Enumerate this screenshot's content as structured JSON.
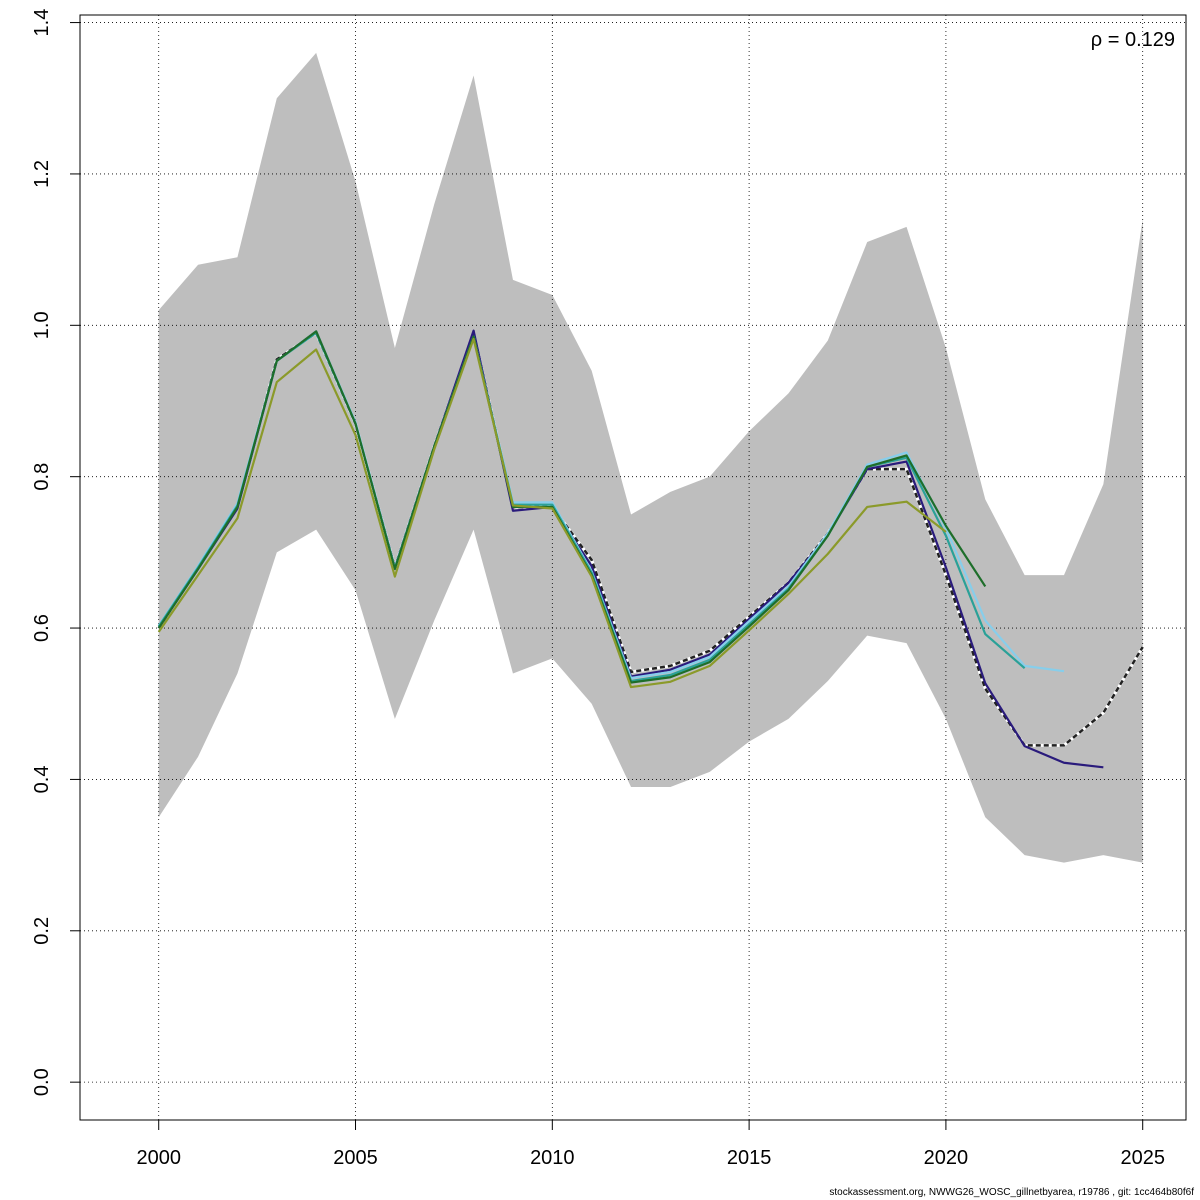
{
  "footer_text": "stockassessment.org, NWWG26_WOSC_gillnetbyarea, r19786 , git: 1cc464b80f6f",
  "annotation": {
    "symbol": "ρ",
    "text": " = 0.129"
  },
  "colors": {
    "band": "#bebebe",
    "grid": "#000000",
    "axis": "#000000"
  },
  "chart_data": {
    "type": "line",
    "xlabel": "",
    "ylabel": "",
    "xlim": [
      1998,
      2026.1
    ],
    "ylim": [
      -0.05,
      1.41
    ],
    "x_ticks": [
      2000,
      2005,
      2010,
      2015,
      2020,
      2025
    ],
    "y_ticks": [
      0.0,
      0.2,
      0.4,
      0.6,
      0.8,
      1.0,
      1.2,
      1.4
    ],
    "x_tick_labels": [
      "2000",
      "2005",
      "2010",
      "2015",
      "2020",
      "2025"
    ],
    "y_tick_labels": [
      "0.0",
      "0.2",
      "0.4",
      "0.6",
      "0.8",
      "1.0",
      "1.2",
      "1.4"
    ],
    "grid": true,
    "confidence_band": {
      "x": [
        2000,
        2001,
        2002,
        2003,
        2004,
        2005,
        2006,
        2007,
        2008,
        2009,
        2010,
        2011,
        2012,
        2013,
        2014,
        2015,
        2016,
        2017,
        2018,
        2019,
        2020,
        2021,
        2022,
        2023,
        2024,
        2025
      ],
      "upper": [
        1.02,
        1.08,
        1.09,
        1.3,
        1.36,
        1.19,
        0.97,
        1.16,
        1.33,
        1.06,
        1.04,
        0.94,
        0.75,
        0.78,
        0.8,
        0.86,
        0.91,
        0.98,
        1.11,
        1.13,
        0.97,
        0.77,
        0.67,
        0.67,
        0.79,
        1.14
      ],
      "lower": [
        0.35,
        0.43,
        0.54,
        0.7,
        0.73,
        0.65,
        0.48,
        0.61,
        0.73,
        0.54,
        0.56,
        0.5,
        0.39,
        0.39,
        0.41,
        0.45,
        0.48,
        0.53,
        0.59,
        0.58,
        0.48,
        0.35,
        0.3,
        0.29,
        0.3,
        0.29
      ]
    },
    "series": [
      {
        "color": "#222222",
        "dashed": true,
        "width": 2.5,
        "x": [
          2000,
          2001,
          2002,
          2003,
          2004,
          2005,
          2006,
          2007,
          2008,
          2009,
          2010,
          2011,
          2012,
          2013,
          2014,
          2015,
          2016,
          2017,
          2018,
          2019,
          2020,
          2021,
          2022,
          2023,
          2024,
          2025
        ],
        "values": [
          0.6,
          0.68,
          0.76,
          0.955,
          0.99,
          0.87,
          0.68,
          0.84,
          0.99,
          0.76,
          0.76,
          0.69,
          0.542,
          0.55,
          0.57,
          0.615,
          0.66,
          0.725,
          0.81,
          0.81,
          0.67,
          0.52,
          0.445,
          0.445,
          0.488,
          0.575
        ]
      },
      {
        "color": "#2a1b7c",
        "dashed": false,
        "width": 2.2,
        "x": [
          2000,
          2001,
          2002,
          2003,
          2004,
          2005,
          2006,
          2007,
          2008,
          2009,
          2010,
          2011,
          2012,
          2013,
          2014,
          2015,
          2016,
          2017,
          2018,
          2019,
          2020,
          2021,
          2022,
          2023,
          2024
        ],
        "values": [
          0.6,
          0.678,
          0.758,
          0.953,
          0.992,
          0.87,
          0.68,
          0.84,
          0.993,
          0.755,
          0.76,
          0.682,
          0.536,
          0.545,
          0.565,
          0.612,
          0.66,
          0.723,
          0.81,
          0.82,
          0.68,
          0.527,
          0.444,
          0.422,
          0.416
        ]
      },
      {
        "color": "#87ceeb",
        "dashed": false,
        "width": 2.2,
        "x": [
          2000,
          2001,
          2002,
          2003,
          2004,
          2005,
          2006,
          2007,
          2008,
          2009,
          2010,
          2011,
          2012,
          2013,
          2014,
          2015,
          2016,
          2017,
          2018,
          2019,
          2020,
          2021,
          2022,
          2023
        ],
        "values": [
          0.603,
          0.682,
          0.765,
          0.953,
          0.992,
          0.872,
          0.68,
          0.84,
          0.985,
          0.766,
          0.766,
          0.675,
          0.534,
          0.542,
          0.562,
          0.609,
          0.655,
          0.725,
          0.816,
          0.832,
          0.732,
          0.61,
          0.55,
          0.543
        ]
      },
      {
        "color": "#2aa198",
        "dashed": false,
        "width": 2.2,
        "x": [
          2000,
          2001,
          2002,
          2003,
          2004,
          2005,
          2006,
          2007,
          2008,
          2009,
          2010,
          2011,
          2012,
          2013,
          2014,
          2015,
          2016,
          2017,
          2018,
          2019,
          2020,
          2021,
          2022
        ],
        "values": [
          0.602,
          0.68,
          0.762,
          0.953,
          0.99,
          0.87,
          0.679,
          0.84,
          0.985,
          0.763,
          0.763,
          0.673,
          0.53,
          0.538,
          0.558,
          0.605,
          0.652,
          0.722,
          0.813,
          0.825,
          0.722,
          0.592,
          0.547
        ]
      },
      {
        "color": "#1e6e2a",
        "dashed": false,
        "width": 2.2,
        "x": [
          2000,
          2001,
          2002,
          2003,
          2004,
          2005,
          2006,
          2007,
          2008,
          2009,
          2010,
          2011,
          2012,
          2013,
          2014,
          2015,
          2016,
          2017,
          2018,
          2019,
          2020,
          2021
        ],
        "values": [
          0.6,
          0.678,
          0.76,
          0.953,
          0.992,
          0.87,
          0.678,
          0.84,
          0.985,
          0.76,
          0.76,
          0.67,
          0.528,
          0.535,
          0.555,
          0.602,
          0.65,
          0.722,
          0.813,
          0.828,
          0.735,
          0.655
        ]
      },
      {
        "color": "#8b9a2a",
        "dashed": false,
        "width": 2.2,
        "x": [
          2000,
          2001,
          2002,
          2003,
          2004,
          2005,
          2006,
          2007,
          2008,
          2009,
          2010,
          2011,
          2012,
          2013,
          2014,
          2015,
          2016,
          2017,
          2018,
          2019,
          2020
        ],
        "values": [
          0.595,
          0.67,
          0.745,
          0.925,
          0.968,
          0.855,
          0.668,
          0.836,
          0.982,
          0.762,
          0.758,
          0.668,
          0.522,
          0.529,
          0.55,
          0.597,
          0.645,
          0.698,
          0.76,
          0.767,
          0.727
        ]
      }
    ]
  }
}
